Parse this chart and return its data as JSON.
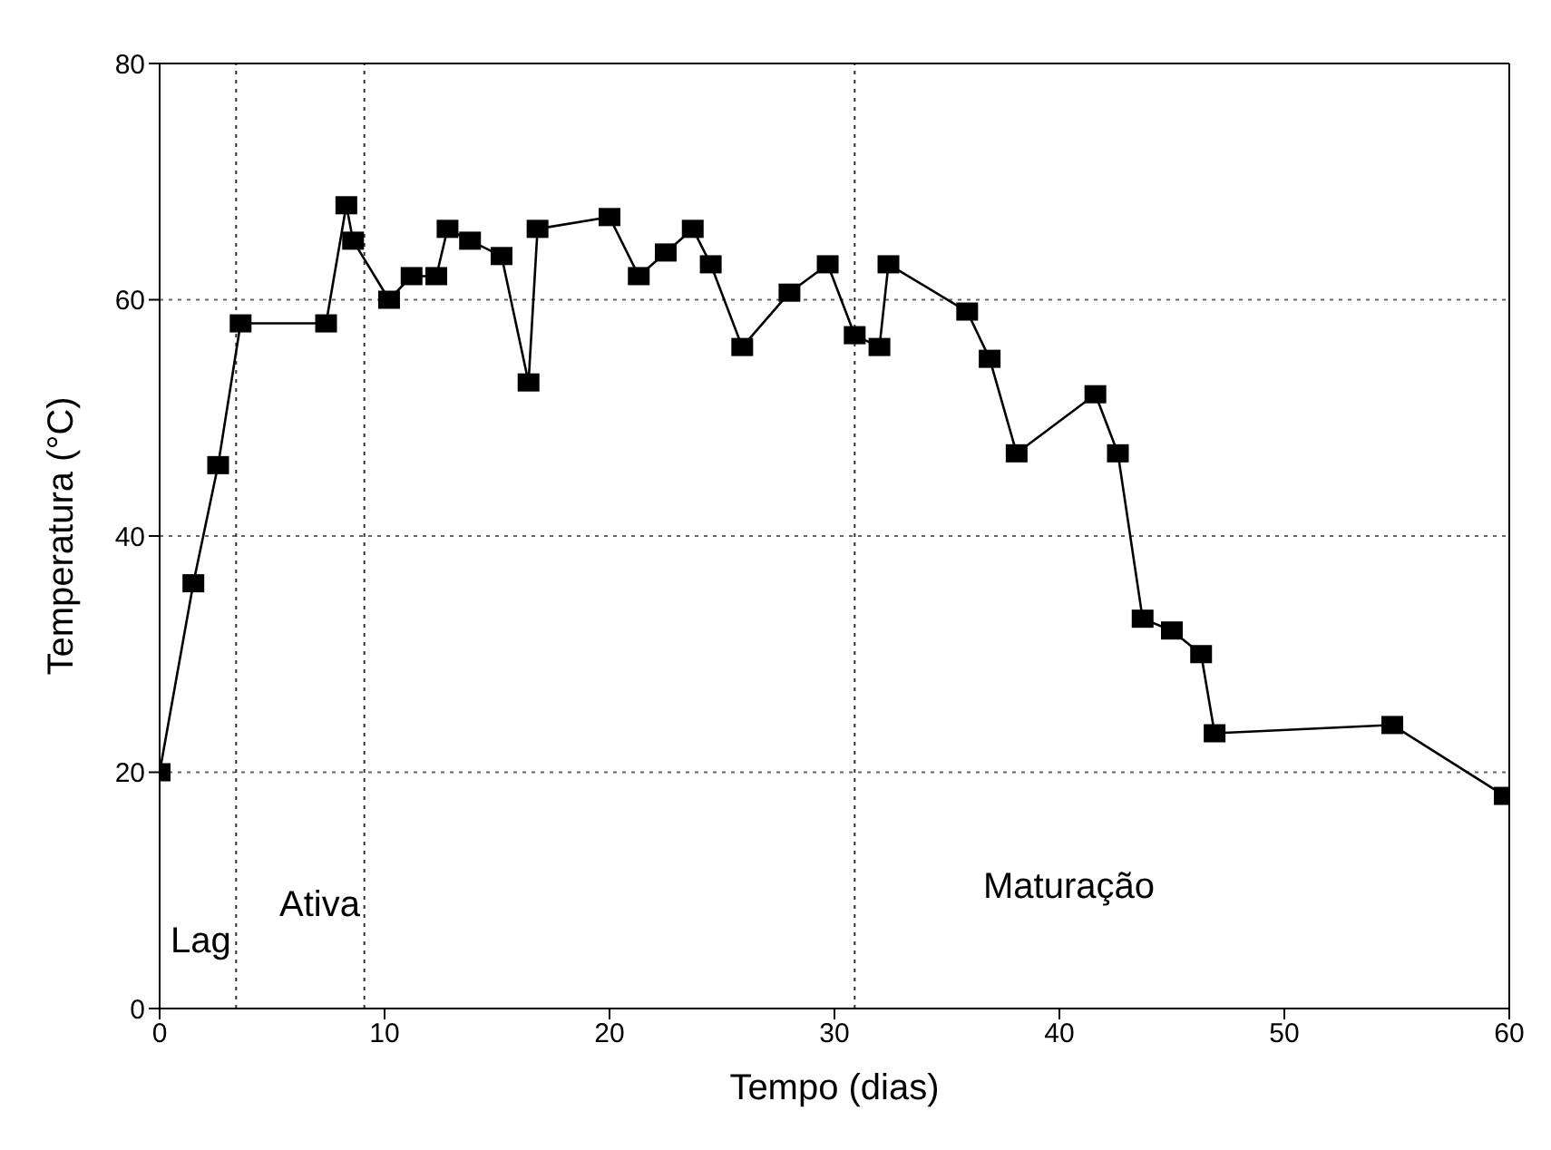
{
  "chart_data": {
    "type": "line",
    "xlabel": "Tempo (dias)",
    "ylabel": "Temperatura (°C)",
    "x": [
      0,
      1.5,
      2.6,
      3.6,
      7.4,
      8.3,
      8.6,
      10.2,
      11.2,
      12.3,
      12.8,
      13.8,
      15.2,
      16.4,
      16.8,
      20,
      21.3,
      22.5,
      23.7,
      24.5,
      25.9,
      28,
      29.7,
      30.9,
      32,
      32.4,
      35.9,
      36.9,
      38.1,
      41.6,
      42.6,
      43.7,
      45,
      46.3,
      46.9,
      54.8,
      59.8
    ],
    "series": [
      {
        "color": "#000000",
        "values": [
          20,
          36,
          46,
          58,
          58,
          68,
          65,
          60,
          62,
          62,
          66,
          65,
          63.7,
          53,
          66,
          67,
          62,
          64,
          66,
          63,
          56,
          60.6,
          63,
          57,
          56,
          63,
          59,
          55,
          47,
          52,
          47,
          33,
          32,
          30,
          23.3,
          24,
          18
        ]
      }
    ],
    "xlim": [
      0,
      60
    ],
    "xticks": [
      0,
      10,
      20,
      30,
      40,
      50,
      60
    ],
    "ylim": [
      0,
      80
    ],
    "yticks": [
      0,
      20,
      40,
      60,
      80
    ],
    "grid": "y",
    "marker": "square",
    "line_style": "solid",
    "ref_lines": [
      {
        "axis": "x",
        "value": 3.4,
        "line_style": "dotted"
      },
      {
        "axis": "x",
        "value": 9.1,
        "line_style": "dotted"
      },
      {
        "axis": "x",
        "value": 30.9,
        "line_style": "dotted"
      }
    ],
    "annotations": [
      "Lag",
      "Ativa",
      "Maturação"
    ]
  }
}
